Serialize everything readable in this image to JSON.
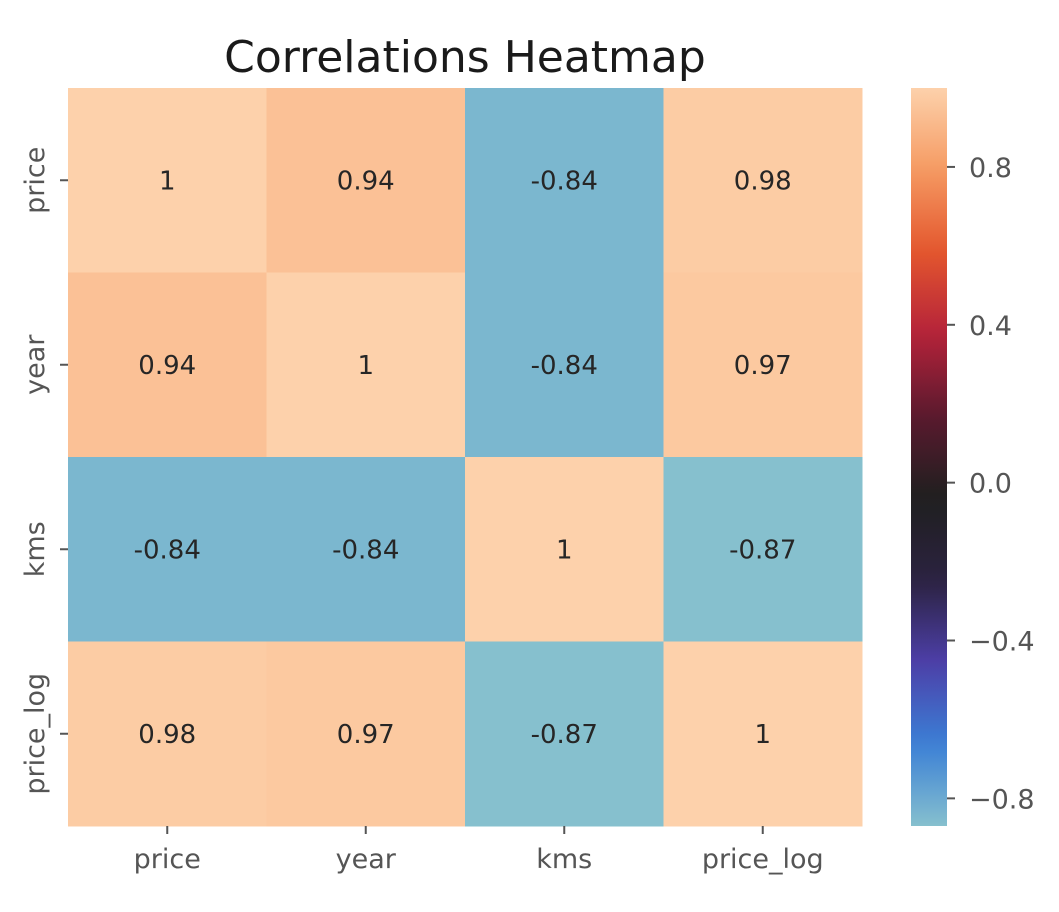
{
  "chart_data": {
    "type": "heatmap",
    "title": "Correlations Heatmap",
    "x_labels": [
      "price",
      "year",
      "kms",
      "price_log"
    ],
    "y_labels": [
      "price",
      "year",
      "kms",
      "price_log"
    ],
    "values": [
      [
        1,
        0.94,
        -0.84,
        0.98
      ],
      [
        0.94,
        1,
        -0.84,
        0.97
      ],
      [
        -0.84,
        -0.84,
        1,
        -0.87
      ],
      [
        0.98,
        0.97,
        -0.87,
        1
      ]
    ],
    "cell_labels": [
      [
        "1",
        "0.94",
        "-0.84",
        "0.98"
      ],
      [
        "0.94",
        "1",
        "-0.84",
        "0.97"
      ],
      [
        "-0.84",
        "-0.84",
        "1",
        "-0.87"
      ],
      [
        "0.98",
        "0.97",
        "-0.87",
        "1"
      ]
    ],
    "colorbar": {
      "vmin": -0.87,
      "vmax": 1,
      "ticks": [
        0.8,
        0.4,
        0.0,
        -0.4,
        -0.8
      ],
      "tick_labels": [
        "0.8",
        "0.4",
        "0.0",
        "−0.4",
        "−0.8"
      ],
      "colormap": "icefire",
      "center": 0,
      "colors": [
        "#86c0ce",
        "#3b7fd6",
        "#4d3fa8",
        "#2b2240",
        "#1f1f1f",
        "#5a1a2e",
        "#b5223a",
        "#e3562e",
        "#f59a62",
        "#fdd1ab"
      ]
    },
    "grid": false,
    "legend": "none"
  }
}
